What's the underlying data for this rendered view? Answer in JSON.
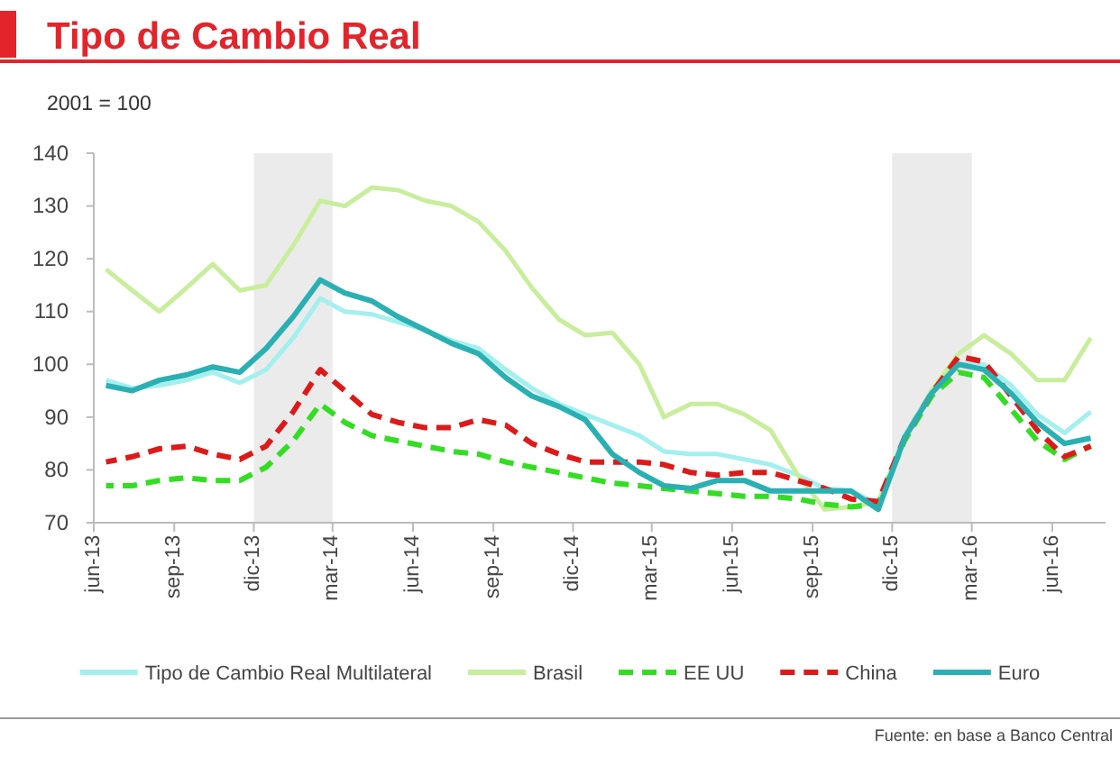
{
  "chart_data": {
    "type": "line",
    "title": "Tipo de Cambio Real",
    "subtitle": "2001 = 100",
    "annotations": [
      "Fuente: en base a Banco Central"
    ],
    "x": [
      "2013-06-15",
      "2013-07-15",
      "2013-08-15",
      "2013-09-15",
      "2013-10-15",
      "2013-11-15",
      "2013-12-15",
      "2014-01-15",
      "2014-02-15",
      "2014-03-15",
      "2014-04-15",
      "2014-05-15",
      "2014-06-15",
      "2014-07-15",
      "2014-08-15",
      "2014-09-15",
      "2014-10-15",
      "2014-11-15",
      "2014-12-15",
      "2015-01-15",
      "2015-02-15",
      "2015-03-15",
      "2015-04-15",
      "2015-05-15",
      "2015-06-15",
      "2015-07-15",
      "2015-08-15",
      "2015-09-15",
      "2015-10-15",
      "2015-11-15",
      "2015-12-15",
      "2016-01-15",
      "2016-02-15",
      "2016-03-15",
      "2016-04-15",
      "2016-05-15",
      "2016-06-15",
      "2016-07-15"
    ],
    "series": [
      {
        "name": "Tipo de Cambio Real Multilateral",
        "color": "#a3f0ee",
        "line_style": "solid",
        "values": [
          97,
          95.5,
          96,
          97,
          98.5,
          96.5,
          99,
          105,
          112.5,
          110,
          109.5,
          108,
          106.5,
          104.5,
          103,
          99,
          95.5,
          92.5,
          90.5,
          88.5,
          86.5,
          83.5,
          83,
          83,
          82,
          81,
          79,
          76.5,
          76,
          73.5,
          86.5,
          95,
          100,
          100,
          96,
          90.5,
          87,
          91
        ]
      },
      {
        "name": "Brasil",
        "color": "#c8ee9c",
        "line_style": "solid",
        "values": [
          118,
          114,
          110,
          114.5,
          119,
          114,
          115,
          122.5,
          131,
          130,
          133.5,
          133,
          131,
          130,
          127,
          121.5,
          114.5,
          108.5,
          105.5,
          106,
          100,
          90,
          92.5,
          92.5,
          90.5,
          87.5,
          79,
          72.5,
          73,
          74,
          86,
          95,
          102,
          105.5,
          102,
          97,
          97,
          105
        ]
      },
      {
        "name": "EE UU",
        "color": "#33dd22",
        "line_style": "dashed",
        "values": [
          77,
          77,
          78,
          78.5,
          78,
          78,
          80.5,
          85.5,
          92.5,
          89,
          86.5,
          85.5,
          84.5,
          83.5,
          83,
          81.5,
          80.5,
          79.5,
          78.5,
          77.5,
          77,
          76.5,
          76,
          75.5,
          75,
          75,
          74.5,
          73.5,
          73,
          73.5,
          85.5,
          94,
          98.5,
          97.5,
          91.5,
          85.5,
          82,
          84.5
        ]
      },
      {
        "name": "China",
        "color": "#dd1a1a",
        "line_style": "dashed",
        "values": [
          81.5,
          82.5,
          84,
          84.5,
          83,
          82,
          84.5,
          91,
          99,
          95,
          90.5,
          89,
          88,
          88,
          89.5,
          88.5,
          85,
          83,
          81.5,
          81.5,
          81.5,
          81,
          79.5,
          79,
          79.5,
          79.5,
          78,
          76.5,
          74.5,
          74,
          86,
          94.5,
          101.5,
          100.5,
          94,
          87.5,
          82.5,
          84.5
        ]
      },
      {
        "name": "Euro",
        "color": "#2ab0b2",
        "line_style": "solid",
        "values": [
          96,
          95,
          97,
          98,
          99.5,
          98.5,
          103,
          109,
          116,
          113.5,
          112,
          109,
          106.5,
          104,
          102,
          97.5,
          94,
          92,
          89.5,
          83,
          79.5,
          77,
          76.5,
          78,
          78,
          76,
          76,
          76,
          76,
          72.5,
          86,
          94.5,
          100,
          99,
          94.5,
          89,
          85,
          86
        ]
      }
    ],
    "xlim": [
      "2013-06",
      "2016-08"
    ],
    "xticks": [
      {
        "value": "2013-06",
        "label": "jun-13"
      },
      {
        "value": "2013-09",
        "label": "sep-13"
      },
      {
        "value": "2013-12",
        "label": "dic-13"
      },
      {
        "value": "2014-03",
        "label": "mar-14"
      },
      {
        "value": "2014-06",
        "label": "jun-14"
      },
      {
        "value": "2014-09",
        "label": "sep-14"
      },
      {
        "value": "2014-12",
        "label": "dic-14"
      },
      {
        "value": "2015-03",
        "label": "mar-15"
      },
      {
        "value": "2015-06",
        "label": "jun-15"
      },
      {
        "value": "2015-09",
        "label": "sep-15"
      },
      {
        "value": "2015-12",
        "label": "dic-15"
      },
      {
        "value": "2016-03",
        "label": "mar-16"
      },
      {
        "value": "2016-06",
        "label": "jun-16"
      }
    ],
    "ylim": [
      70,
      140
    ],
    "yticks": [
      70,
      80,
      90,
      100,
      110,
      120,
      130,
      140
    ],
    "bands": [
      {
        "axis": "x",
        "from": "2013-12",
        "to": "2014-03",
        "color": "#ebebeb"
      },
      {
        "axis": "x",
        "from": "2015-12",
        "to": "2016-03",
        "color": "#ebebeb"
      }
    ],
    "grid": false,
    "legend": "bottom",
    "marker": "none"
  }
}
